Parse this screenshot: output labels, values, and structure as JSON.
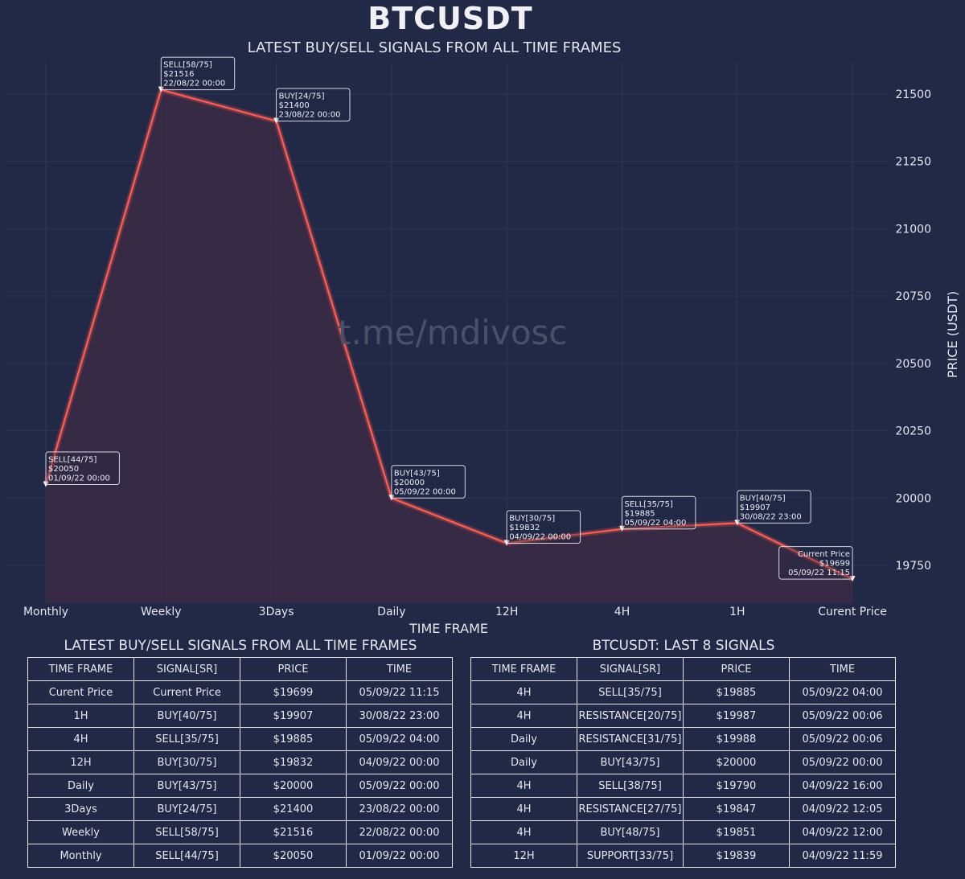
{
  "header": {
    "title": "BTCUSDT",
    "subtitle": "LATEST BUY/SELL SIGNALS FROM ALL TIME FRAMES"
  },
  "watermark": "t.me/mdivosc",
  "colors": {
    "background": "#212946",
    "line": "#fe5a4e",
    "fill": "#3a2a44",
    "grid": "#2e3656",
    "text": "#e6e6ee"
  },
  "chart_data": {
    "type": "area",
    "title": "LATEST BUY/SELL SIGNALS FROM ALL TIME FRAMES",
    "xlabel": "TIME FRAME",
    "ylabel": "PRICE (USDT)",
    "categories": [
      "Monthly",
      "Weekly",
      "3Days",
      "Daily",
      "12H",
      "4H",
      "1H",
      "Curent Price"
    ],
    "values": [
      20050,
      21516,
      21400,
      20000,
      19832,
      19885,
      19907,
      19699
    ],
    "ylim": [
      19610,
      21560
    ],
    "yticks": [
      19750,
      20000,
      20250,
      20500,
      20750,
      21000,
      21250,
      21500
    ],
    "annotations": [
      {
        "lines": [
          "SELL[44/75]",
          "$20050",
          "01/09/22 00:00"
        ],
        "align": "left"
      },
      {
        "lines": [
          "SELL[58/75]",
          "$21516",
          "22/08/22 00:00"
        ],
        "align": "left"
      },
      {
        "lines": [
          "BUY[24/75]",
          "$21400",
          "23/08/22 00:00"
        ],
        "align": "left"
      },
      {
        "lines": [
          "BUY[43/75]",
          "$20000",
          "05/09/22 00:00"
        ],
        "align": "left"
      },
      {
        "lines": [
          "BUY[30/75]",
          "$19832",
          "04/09/22 00:00"
        ],
        "align": "left"
      },
      {
        "lines": [
          "SELL[35/75]",
          "$19885",
          "05/09/22 04:00"
        ],
        "align": "left"
      },
      {
        "lines": [
          "BUY[40/75]",
          "$19907",
          "30/08/22 23:00"
        ],
        "align": "left"
      },
      {
        "lines": [
          "Current Price",
          "$19699",
          "05/09/22 11:15"
        ],
        "align": "right"
      }
    ]
  },
  "left_table": {
    "title": "LATEST BUY/SELL SIGNALS FROM ALL TIME FRAMES",
    "headers": [
      "TIME FRAME",
      "SIGNAL[SR]",
      "PRICE",
      "TIME"
    ],
    "rows": [
      [
        "Curent Price",
        "Current Price",
        "$19699",
        "05/09/22 11:15"
      ],
      [
        "1H",
        "BUY[40/75]",
        "$19907",
        "30/08/22 23:00"
      ],
      [
        "4H",
        "SELL[35/75]",
        "$19885",
        "05/09/22 04:00"
      ],
      [
        "12H",
        "BUY[30/75]",
        "$19832",
        "04/09/22 00:00"
      ],
      [
        "Daily",
        "BUY[43/75]",
        "$20000",
        "05/09/22 00:00"
      ],
      [
        "3Days",
        "BUY[24/75]",
        "$21400",
        "23/08/22 00:00"
      ],
      [
        "Weekly",
        "SELL[58/75]",
        "$21516",
        "22/08/22 00:00"
      ],
      [
        "Monthly",
        "SELL[44/75]",
        "$20050",
        "01/09/22 00:00"
      ]
    ]
  },
  "right_table": {
    "title": "BTCUSDT: LAST 8 SIGNALS",
    "headers": [
      "TIME FRAME",
      "SIGNAL[SR]",
      "PRICE",
      "TIME"
    ],
    "rows": [
      [
        "4H",
        "SELL[35/75]",
        "$19885",
        "05/09/22 04:00"
      ],
      [
        "4H",
        "RESISTANCE[20/75]",
        "$19987",
        "05/09/22 00:06"
      ],
      [
        "Daily",
        "RESISTANCE[31/75]",
        "$19988",
        "05/09/22 00:06"
      ],
      [
        "Daily",
        "BUY[43/75]",
        "$20000",
        "05/09/22 00:00"
      ],
      [
        "4H",
        "SELL[38/75]",
        "$19790",
        "04/09/22 16:00"
      ],
      [
        "4H",
        "RESISTANCE[27/75]",
        "$19847",
        "04/09/22 12:05"
      ],
      [
        "4H",
        "BUY[48/75]",
        "$19851",
        "04/09/22 12:00"
      ],
      [
        "12H",
        "SUPPORT[33/75]",
        "$19839",
        "04/09/22 11:59"
      ]
    ]
  }
}
